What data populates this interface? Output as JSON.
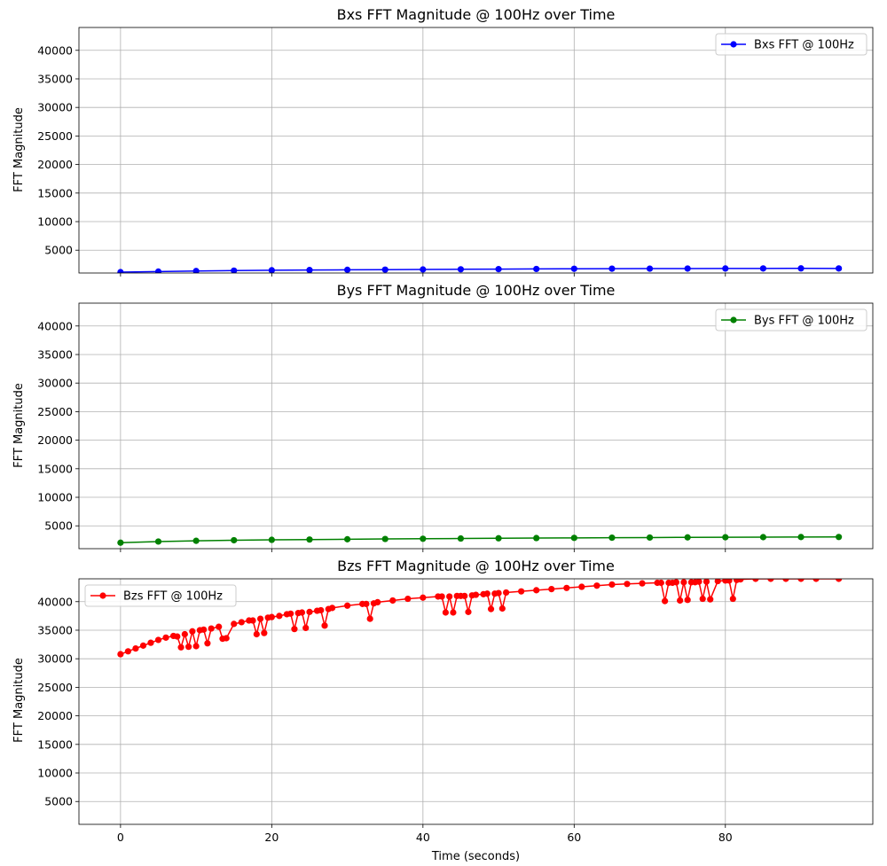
{
  "figure": {
    "xlabel": "Time (seconds)"
  },
  "chart_data": [
    {
      "type": "line",
      "title": "Bxs FFT Magnitude @ 100Hz over Time",
      "ylabel": "FFT Magnitude",
      "xlim": [
        -5.5,
        99.5
      ],
      "ylim": [
        1000,
        44000
      ],
      "xticks": [
        0,
        20,
        40,
        60,
        80
      ],
      "yticks": [
        5000,
        10000,
        15000,
        20000,
        25000,
        30000,
        35000,
        40000
      ],
      "show_xtick_labels": false,
      "grid": true,
      "legend": "top-right",
      "series": [
        {
          "name": "Bxs FFT @ 100Hz",
          "color": "#0000ff",
          "x": [
            0,
            5,
            10,
            15,
            20,
            25,
            30,
            35,
            40,
            45,
            50,
            55,
            60,
            65,
            70,
            75,
            80,
            85,
            90,
            95
          ],
          "y": [
            1150,
            1250,
            1350,
            1420,
            1480,
            1520,
            1560,
            1590,
            1620,
            1650,
            1680,
            1710,
            1740,
            1760,
            1770,
            1780,
            1790,
            1800,
            1810,
            1800
          ]
        }
      ]
    },
    {
      "type": "line",
      "title": "Bys FFT Magnitude @ 100Hz over Time",
      "ylabel": "FFT Magnitude",
      "xlim": [
        -5.5,
        99.5
      ],
      "ylim": [
        1000,
        44000
      ],
      "xticks": [
        0,
        20,
        40,
        60,
        80
      ],
      "yticks": [
        5000,
        10000,
        15000,
        20000,
        25000,
        30000,
        35000,
        40000
      ],
      "show_xtick_labels": false,
      "grid": true,
      "legend": "top-right",
      "series": [
        {
          "name": "Bys FFT @ 100Hz",
          "color": "#008000",
          "x": [
            0,
            5,
            10,
            15,
            20,
            25,
            30,
            35,
            40,
            45,
            50,
            55,
            60,
            65,
            70,
            75,
            80,
            85,
            90,
            95
          ],
          "y": [
            2050,
            2250,
            2380,
            2480,
            2550,
            2600,
            2650,
            2700,
            2740,
            2780,
            2820,
            2860,
            2890,
            2920,
            2950,
            2980,
            3000,
            3020,
            3040,
            3050
          ]
        }
      ]
    },
    {
      "type": "line",
      "title": "Bzs FFT Magnitude @ 100Hz over Time",
      "ylabel": "FFT Magnitude",
      "xlabel": "Time (seconds)",
      "xlim": [
        -5.5,
        99.5
      ],
      "ylim": [
        1000,
        44000
      ],
      "xticks": [
        0,
        20,
        40,
        60,
        80
      ],
      "yticks": [
        5000,
        10000,
        15000,
        20000,
        25000,
        30000,
        35000,
        40000
      ],
      "show_xtick_labels": true,
      "grid": true,
      "legend": "top-left",
      "series": [
        {
          "name": "Bzs FFT @ 100Hz",
          "color": "#ff0000",
          "x": [
            0,
            1,
            2,
            3,
            4,
            5,
            6,
            7,
            7.5,
            8,
            8.5,
            9,
            9.5,
            10,
            10.5,
            11,
            11.5,
            12,
            13,
            13.5,
            14,
            15,
            16,
            17,
            17.5,
            18,
            18.5,
            19,
            19.5,
            20,
            21,
            22,
            22.5,
            23,
            23.5,
            24,
            24.5,
            25,
            26,
            26.5,
            27,
            27.5,
            28,
            30,
            32,
            32.5,
            33,
            33.5,
            34,
            36,
            38,
            40,
            42,
            42.5,
            43,
            43.5,
            44,
            44.5,
            45,
            45.5,
            46,
            46.5,
            47,
            48,
            48.5,
            49,
            49.5,
            50,
            50.5,
            51,
            53,
            55,
            57,
            59,
            61,
            63,
            65,
            67,
            69,
            71,
            71.5,
            72,
            72.5,
            73,
            73.5,
            74,
            74.5,
            75,
            75.5,
            76,
            76.5,
            77,
            77.5,
            78,
            79,
            80,
            80.5,
            81,
            81.5,
            82,
            84,
            86,
            88,
            90,
            92,
            95
          ],
          "y": [
            30800,
            31300,
            31800,
            32300,
            32800,
            33300,
            33700,
            34000,
            33900,
            32000,
            34300,
            32100,
            34800,
            32200,
            35000,
            35100,
            32700,
            35300,
            35600,
            33500,
            33600,
            36100,
            36400,
            36700,
            36700,
            34300,
            37000,
            34500,
            37200,
            37300,
            37500,
            37800,
            37900,
            35200,
            38000,
            38100,
            35400,
            38200,
            38400,
            38500,
            35800,
            38700,
            38900,
            39300,
            39600,
            39600,
            37000,
            39700,
            39900,
            40200,
            40500,
            40700,
            40900,
            40900,
            38100,
            40900,
            38100,
            41000,
            41000,
            41000,
            38200,
            41100,
            41200,
            41300,
            41400,
            38700,
            41400,
            41500,
            38800,
            41600,
            41800,
            42000,
            42200,
            42400,
            42600,
            42800,
            43000,
            43100,
            43200,
            43300,
            43300,
            40100,
            43300,
            43300,
            43400,
            40200,
            43400,
            40300,
            43400,
            43400,
            43500,
            40500,
            43500,
            40400,
            43600,
            43700,
            43700,
            40500,
            43800,
            43900,
            44000,
            44000,
            44000,
            44000,
            44000,
            44000
          ]
        }
      ]
    }
  ]
}
